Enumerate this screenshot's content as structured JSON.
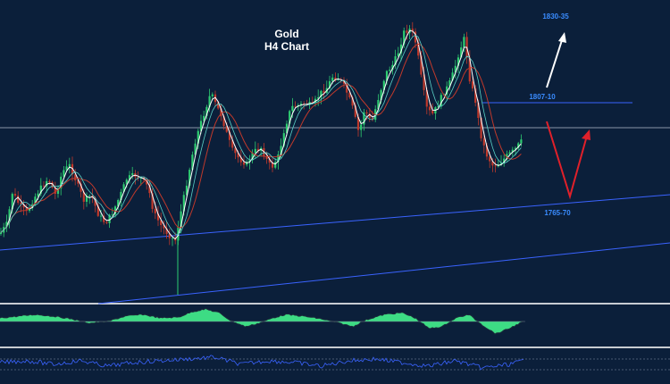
{
  "chart_data": {
    "type": "candlestick",
    "title_line1": "Gold",
    "title_line2": "H4 Chart",
    "levels": {
      "target_high": "1830-35",
      "resistance": "1807-10",
      "support": "1765-70"
    },
    "colors": {
      "background": "#0b1f3a",
      "bull": "#2ecc71",
      "bear": "#c0392b",
      "trendline": "#3a63ff",
      "bull_arrow": "#ffffff",
      "bear_arrow": "#e0202a",
      "histogram": "#3ddc84"
    },
    "close_path": [
      [
        0,
        262
      ],
      [
        8,
        250
      ],
      [
        14,
        215
      ],
      [
        22,
        230
      ],
      [
        30,
        238
      ],
      [
        38,
        222
      ],
      [
        46,
        210
      ],
      [
        54,
        200
      ],
      [
        62,
        218
      ],
      [
        70,
        192
      ],
      [
        78,
        185
      ],
      [
        86,
        205
      ],
      [
        94,
        225
      ],
      [
        102,
        218
      ],
      [
        110,
        240
      ],
      [
        118,
        250
      ],
      [
        126,
        238
      ],
      [
        134,
        220
      ],
      [
        142,
        200
      ],
      [
        150,
        196
      ],
      [
        158,
        200
      ],
      [
        166,
        210
      ],
      [
        172,
        238
      ],
      [
        180,
        252
      ],
      [
        188,
        262
      ],
      [
        196,
        270
      ],
      [
        200,
        250
      ],
      [
        206,
        220
      ],
      [
        212,
        190
      ],
      [
        218,
        160
      ],
      [
        224,
        140
      ],
      [
        230,
        122
      ],
      [
        236,
        104
      ],
      [
        242,
        118
      ],
      [
        248,
        130
      ],
      [
        254,
        150
      ],
      [
        260,
        168
      ],
      [
        268,
        178
      ],
      [
        276,
        184
      ],
      [
        284,
        170
      ],
      [
        292,
        165
      ],
      [
        298,
        178
      ],
      [
        304,
        188
      ],
      [
        312,
        174
      ],
      [
        318,
        146
      ],
      [
        326,
        120
      ],
      [
        334,
        118
      ],
      [
        342,
        116
      ],
      [
        350,
        118
      ],
      [
        358,
        105
      ],
      [
        366,
        98
      ],
      [
        372,
        86
      ],
      [
        380,
        88
      ],
      [
        386,
        98
      ],
      [
        394,
        118
      ],
      [
        402,
        150
      ],
      [
        408,
        122
      ],
      [
        416,
        138
      ],
      [
        424,
        108
      ],
      [
        432,
        82
      ],
      [
        440,
        72
      ],
      [
        446,
        58
      ],
      [
        452,
        36
      ],
      [
        460,
        32
      ],
      [
        466,
        50
      ],
      [
        472,
        90
      ],
      [
        478,
        122
      ],
      [
        484,
        128
      ],
      [
        490,
        118
      ],
      [
        496,
        104
      ],
      [
        502,
        96
      ],
      [
        508,
        80
      ],
      [
        514,
        58
      ],
      [
        520,
        42
      ],
      [
        526,
        90
      ],
      [
        532,
        112
      ],
      [
        538,
        150
      ],
      [
        544,
        172
      ],
      [
        552,
        186
      ],
      [
        560,
        182
      ],
      [
        568,
        174
      ],
      [
        576,
        168
      ],
      [
        582,
        160
      ],
      [
        586,
        156
      ]
    ],
    "oscillator_path": [
      [
        0,
        356
      ],
      [
        20,
        354
      ],
      [
        40,
        352
      ],
      [
        60,
        354
      ],
      [
        80,
        357
      ],
      [
        100,
        362
      ],
      [
        120,
        360
      ],
      [
        140,
        354
      ],
      [
        160,
        352
      ],
      [
        180,
        356
      ],
      [
        200,
        355
      ],
      [
        215,
        349
      ],
      [
        230,
        346
      ],
      [
        245,
        350
      ],
      [
        260,
        360
      ],
      [
        275,
        366
      ],
      [
        290,
        362
      ],
      [
        305,
        356
      ],
      [
        320,
        352
      ],
      [
        340,
        354
      ],
      [
        360,
        357
      ],
      [
        380,
        362
      ],
      [
        395,
        366
      ],
      [
        410,
        358
      ],
      [
        430,
        352
      ],
      [
        450,
        350
      ],
      [
        465,
        356
      ],
      [
        480,
        368
      ],
      [
        495,
        366
      ],
      [
        510,
        356
      ],
      [
        525,
        352
      ],
      [
        540,
        364
      ],
      [
        555,
        374
      ],
      [
        570,
        368
      ],
      [
        586,
        360
      ]
    ],
    "rsi_path": [
      [
        0,
        406
      ],
      [
        30,
        404
      ],
      [
        60,
        408
      ],
      [
        90,
        404
      ],
      [
        120,
        410
      ],
      [
        150,
        406
      ],
      [
        180,
        404
      ],
      [
        210,
        402
      ],
      [
        240,
        400
      ],
      [
        270,
        408
      ],
      [
        300,
        404
      ],
      [
        330,
        406
      ],
      [
        360,
        410
      ],
      [
        390,
        404
      ],
      [
        420,
        402
      ],
      [
        450,
        406
      ],
      [
        480,
        410
      ],
      [
        510,
        404
      ],
      [
        540,
        412
      ],
      [
        570,
        408
      ],
      [
        586,
        404
      ]
    ]
  }
}
